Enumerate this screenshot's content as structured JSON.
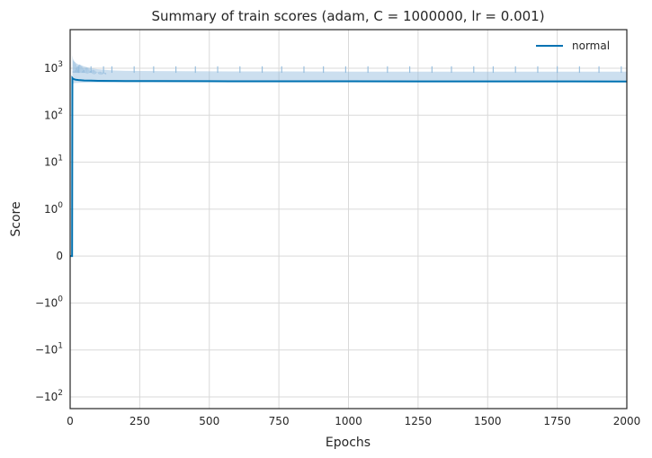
{
  "chart_data": {
    "type": "line",
    "title": "Summary of train scores (adam, C = 1000000, lr = 0.001)",
    "xlabel": "Epochs",
    "ylabel": "Score",
    "xlim": [
      0,
      2000
    ],
    "yscale": "symlog",
    "ylim": [
      -120,
      5000
    ],
    "x_ticks": [
      0,
      250,
      500,
      750,
      1000,
      1250,
      1500,
      1750,
      2000
    ],
    "x_tick_labels": [
      "0",
      "250",
      "500",
      "750",
      "1000",
      "1250",
      "1500",
      "1750",
      "2000"
    ],
    "y_ticks": [
      {
        "value": 1000,
        "base": "10",
        "exp": "3"
      },
      {
        "value": 100,
        "base": "10",
        "exp": "2"
      },
      {
        "value": 10,
        "base": "10",
        "exp": "1"
      },
      {
        "value": 1,
        "base": "10",
        "exp": "0"
      },
      {
        "value": 0,
        "base": "0",
        "exp": ""
      },
      {
        "value": -1,
        "base": "−10",
        "exp": "0"
      },
      {
        "value": -10,
        "base": "−10",
        "exp": "1"
      },
      {
        "value": -100,
        "base": "−10",
        "exp": "2"
      }
    ],
    "grid": true,
    "legend_position": "top-right",
    "series": [
      {
        "name": "normal",
        "color": "#0072b2",
        "band_color": "#8fb9dc",
        "x": [
          0,
          7,
          8,
          10,
          15,
          20,
          30,
          50,
          75,
          100,
          150,
          200,
          300,
          500,
          750,
          1000,
          1250,
          1500,
          1750,
          2000
        ],
        "y": [
          0,
          0,
          620,
          600,
          580,
          570,
          560,
          550,
          545,
          540,
          538,
          535,
          533,
          530,
          528,
          527,
          526,
          525,
          524,
          523
        ],
        "band_upper": [
          0,
          0,
          1900,
          1600,
          1400,
          1300,
          1200,
          1100,
          1000,
          950,
          900,
          880,
          870,
          860,
          855,
          850,
          850,
          850,
          850,
          850
        ],
        "band_lower": [
          0,
          0,
          460,
          470,
          480,
          485,
          490,
          495,
          497,
          498,
          499,
          500,
          500,
          500,
          500,
          500,
          500,
          500,
          500,
          500
        ],
        "spike_epochs": [
          30,
          75,
          120,
          150,
          230,
          300,
          380,
          450,
          530,
          610,
          690,
          760,
          840,
          910,
          990,
          1070,
          1140,
          1220,
          1300,
          1370,
          1450,
          1520,
          1600,
          1680,
          1750,
          1830,
          1900,
          1980
        ],
        "spike_value": 1100
      }
    ]
  }
}
